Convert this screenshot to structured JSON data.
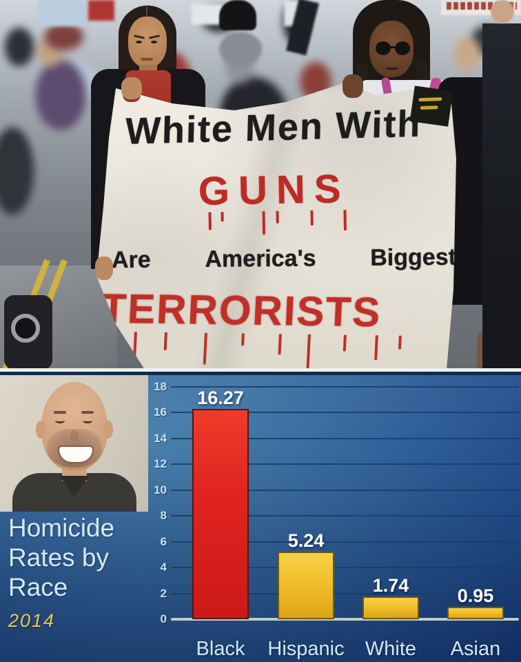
{
  "photo": {
    "banner": {
      "line1": "White Men With",
      "line2": "GUNS",
      "line3_words": [
        "Are",
        "America's",
        "Biggest"
      ],
      "line4": "TERRORISTS",
      "paint_red": "#bf2a24",
      "ink_black": "#1d1d1d"
    }
  },
  "caption": {
    "line1": "Homicide",
    "line2": "Rates by",
    "line3": "Race",
    "year": "2014",
    "text_color": "#d3e9f8",
    "year_color": "#e9c94d"
  },
  "chart_data": {
    "type": "bar",
    "title": "Homicide Rates by Race",
    "year": "2014",
    "categories": [
      "Black",
      "Hispanic",
      "White",
      "Asian"
    ],
    "values": [
      16.27,
      5.24,
      1.74,
      0.95
    ],
    "value_labels": [
      "16.27",
      "5.24",
      "1.74",
      "0.95"
    ],
    "bar_colors": [
      "red",
      "yellow",
      "yellow",
      "yellow"
    ],
    "bar_hex": [
      "#e02421",
      "#f0c02c",
      "#f0c02c",
      "#f0c02c"
    ],
    "y_ticks": [
      0,
      2,
      4,
      6,
      8,
      10,
      12,
      14,
      16,
      18
    ],
    "ylim": [
      0,
      18.4
    ],
    "grid": true,
    "legend_position": "none",
    "background": "blue-gradient",
    "tick_label_color": "#c9e2f4",
    "value_label_color": "#ffffff",
    "category_label_color": "#d3e9f8"
  }
}
